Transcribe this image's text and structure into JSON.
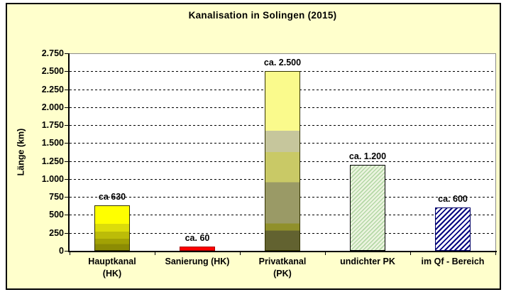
{
  "chart_data": {
    "type": "bar",
    "title": "Kanalisation in Solingen (2015)",
    "ylabel": "Länge (km)",
    "xlabel": "",
    "ylim": [
      0,
      2750
    ],
    "ytick_step": 250,
    "ytick_values": [
      0,
      250,
      500,
      750,
      1000,
      1250,
      1500,
      1750,
      2000,
      2250,
      2500,
      2750
    ],
    "ytick_labels": [
      "0",
      "250",
      "500",
      "750",
      "1.000",
      "1.250",
      "1.500",
      "1.750",
      "2.000",
      "2.250",
      "2.500",
      "2.750"
    ],
    "grid": "horizontal-dashed",
    "legend": "none",
    "categories": [
      "Hauptkanal (HK)",
      "Sanierung (HK)",
      "Privatkanal (PK)",
      "undichter PK",
      "im Qf - Bereich"
    ],
    "category_label_lines": [
      [
        "Hauptkanal",
        "(HK)"
      ],
      [
        "Sanierung (HK)"
      ],
      [
        "Privatkanal",
        "(PK)"
      ],
      [
        "undichter PK"
      ],
      [
        "im Qf - Bereich"
      ]
    ],
    "values": [
      630,
      60,
      2500,
      1200,
      600
    ],
    "value_labels": [
      "ca 630",
      "ca. 60",
      "ca. 2.500",
      "ca. 1.200",
      "ca. 600"
    ],
    "bar_styles": [
      {
        "name": "yellow-gradient",
        "colors": [
          "#ffff00",
          "#8c8c04"
        ]
      },
      {
        "name": "solid-red",
        "colors": [
          "#ff0000"
        ]
      },
      {
        "name": "olive-yellow-gradient",
        "colors": [
          "#fafa8c",
          "#626230"
        ]
      },
      {
        "name": "green-diagonal-hatch",
        "colors": [
          "#ecf4e0",
          "#b4d8a6"
        ]
      },
      {
        "name": "navy-diagonal-hatch",
        "colors": [
          "#ffffff",
          "#000080"
        ]
      }
    ]
  },
  "colors": {
    "chart_background": "#ffffcc",
    "plot_background": "#ffffff",
    "plot_border": "#8a8a8a",
    "axis": "#000000",
    "frame_border": "#000000",
    "gridline": "#000000",
    "text": "#000000"
  }
}
